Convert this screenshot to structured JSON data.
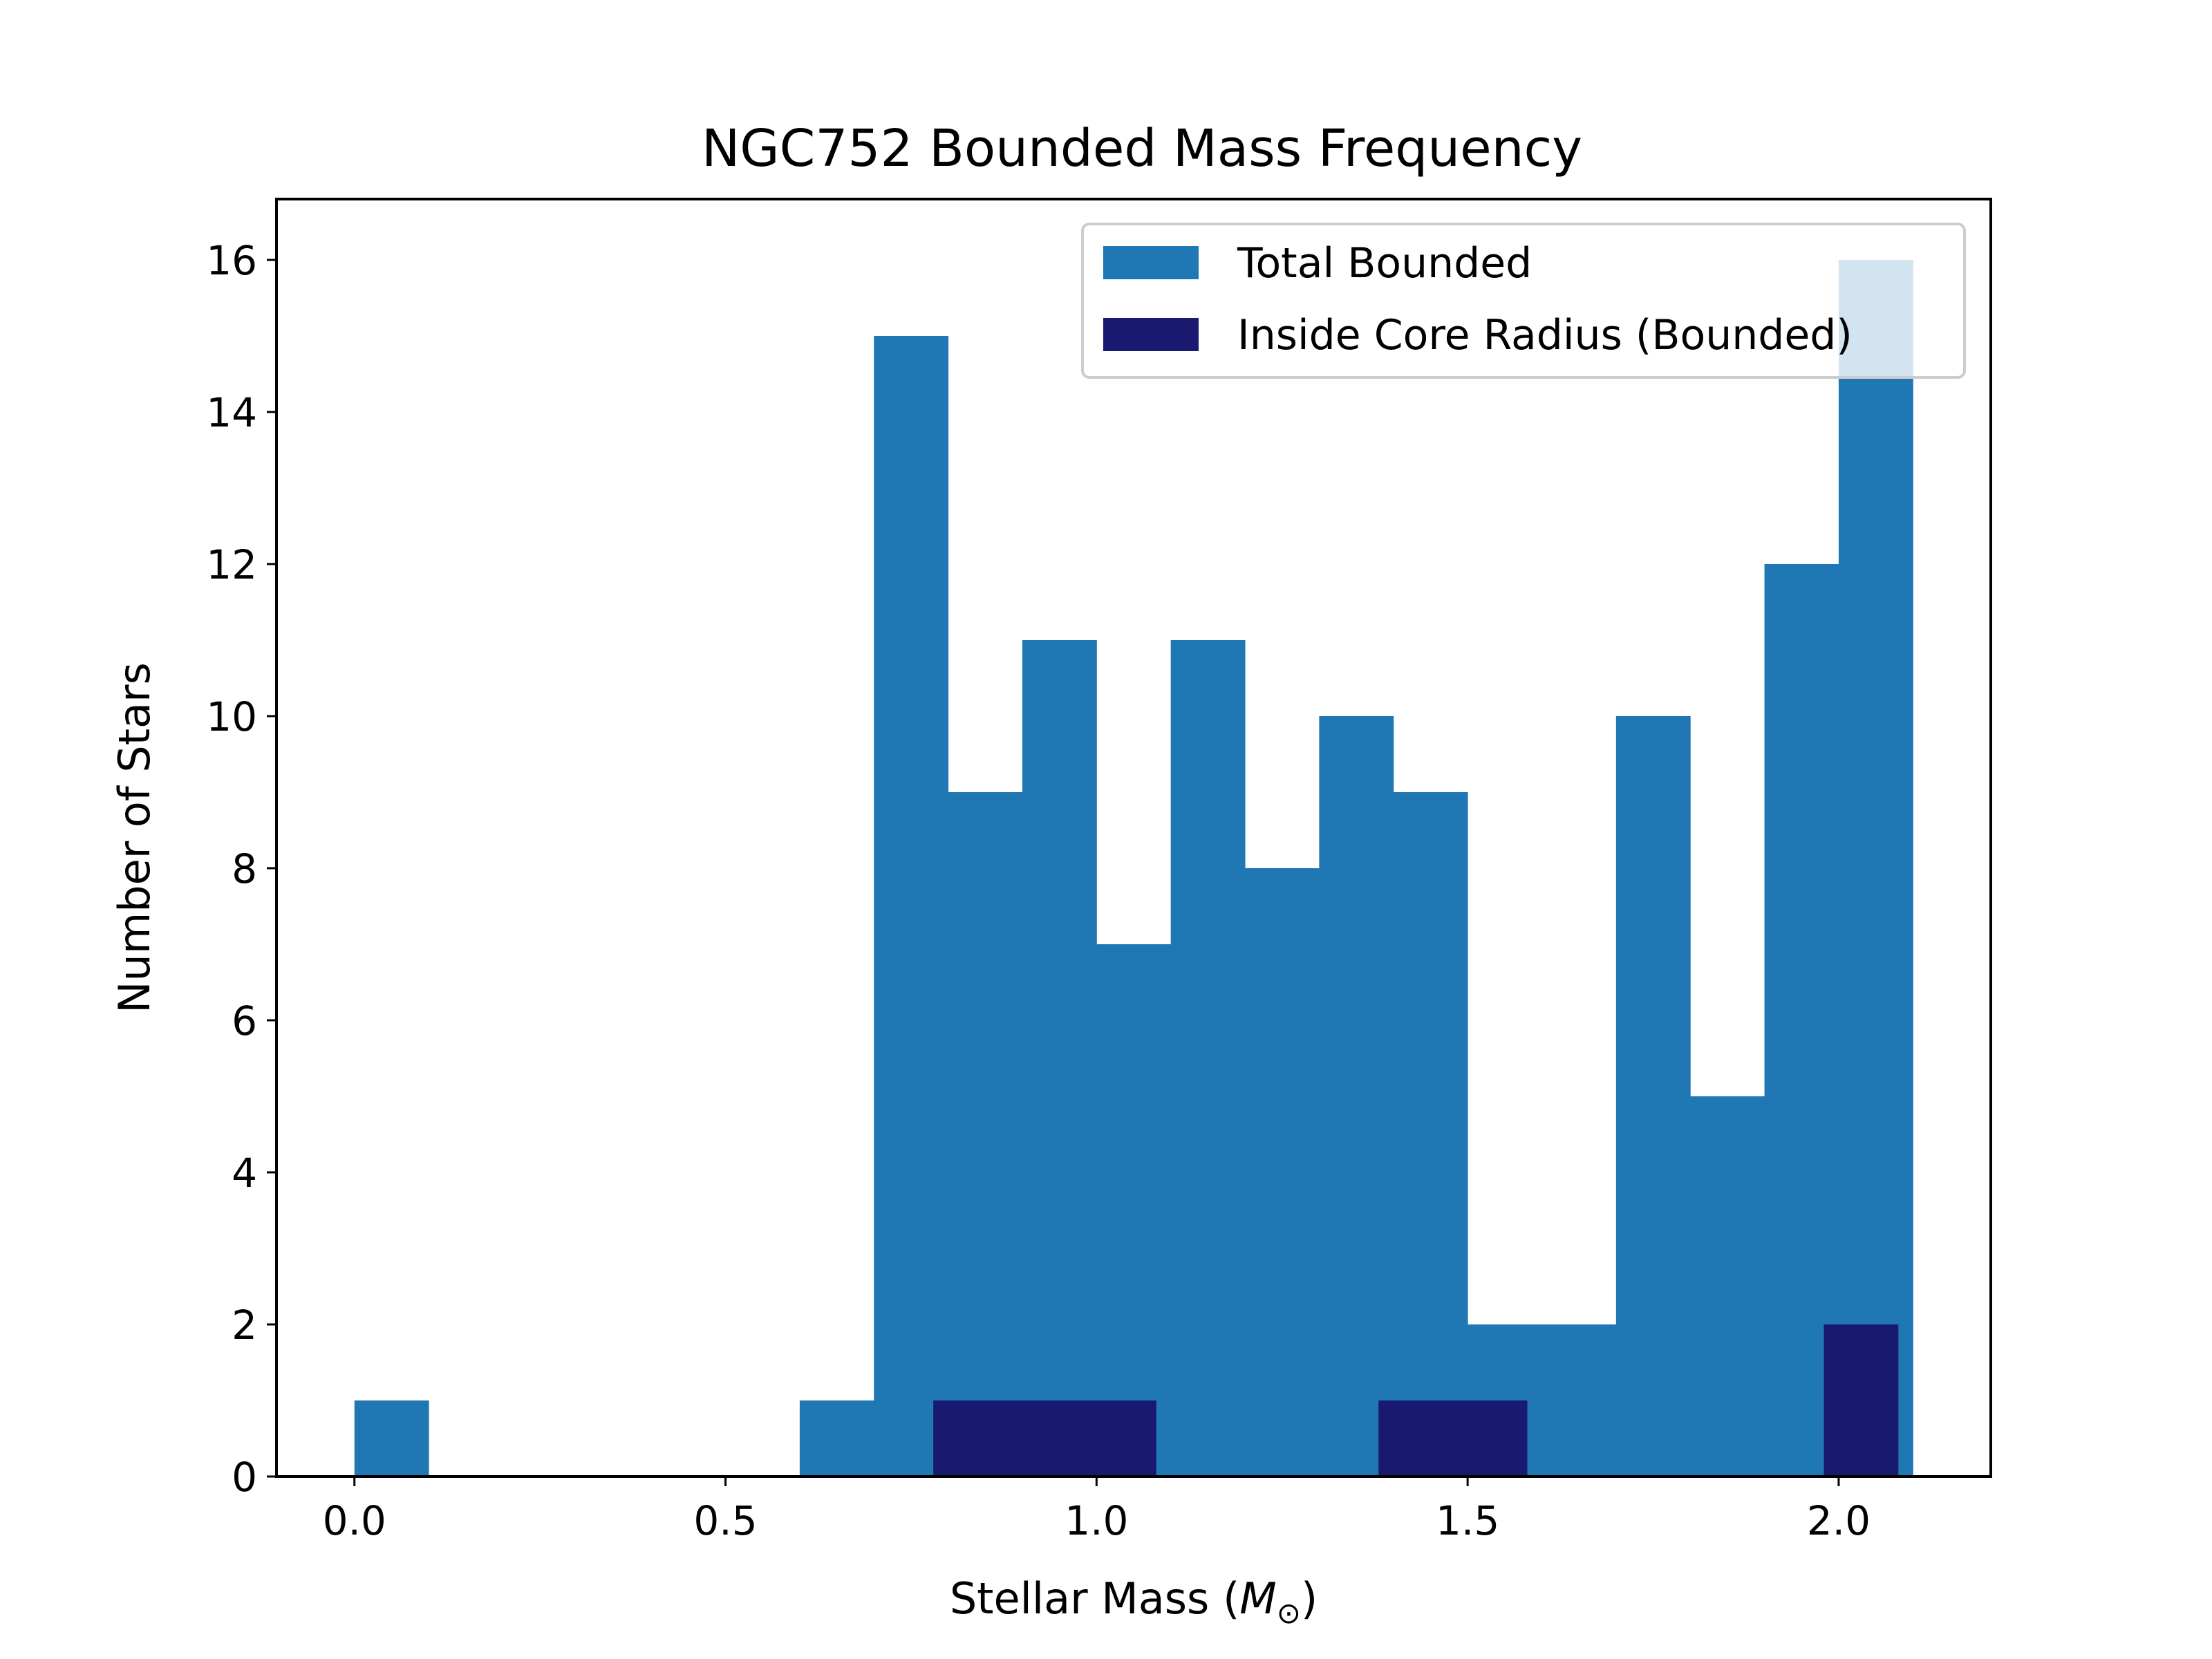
{
  "chart_data": {
    "type": "bar",
    "title": "NGC752 Bounded Mass Frequency",
    "xlabel": "Stellar Mass (",
    "xlabel_symbol": "M",
    "xlabel_subscript": "⊙",
    "xlabel_close": ")",
    "ylabel": "Number of Stars",
    "xlim": [
      -0.105,
      2.205
    ],
    "ylim": [
      0,
      16.8
    ],
    "xticks": [
      "0.0",
      "0.5",
      "1.0",
      "1.5",
      "2.0"
    ],
    "yticks": [
      "0",
      "2",
      "4",
      "6",
      "8",
      "10",
      "12",
      "14",
      "16"
    ],
    "legend_position": "top-right",
    "series": [
      {
        "name": "Total Bounded",
        "color": "#1f77b4",
        "bin_edges": [
          0.0,
          0.1,
          0.2,
          0.3,
          0.4,
          0.5,
          0.6,
          0.7,
          0.8,
          0.9,
          1.0,
          1.1,
          1.2,
          1.3,
          1.4,
          1.5,
          1.6,
          1.7,
          1.8,
          1.9,
          2.0,
          2.1
        ],
        "values": [
          1,
          0,
          0,
          0,
          0,
          0,
          1,
          15,
          9,
          11,
          7,
          11,
          8,
          10,
          9,
          2,
          2,
          10,
          5,
          12,
          16
        ]
      },
      {
        "name": "Inside Core Radius (Bounded)",
        "color": "#191970",
        "bin_edges": [
          0.78,
          0.88,
          0.98,
          1.08,
          1.18,
          1.28,
          1.38,
          1.48,
          1.58,
          1.68,
          1.78,
          1.88,
          1.98,
          2.08
        ],
        "values": [
          1,
          1,
          1,
          0,
          0,
          0,
          1,
          1,
          0,
          0,
          0,
          0,
          2
        ]
      }
    ]
  }
}
